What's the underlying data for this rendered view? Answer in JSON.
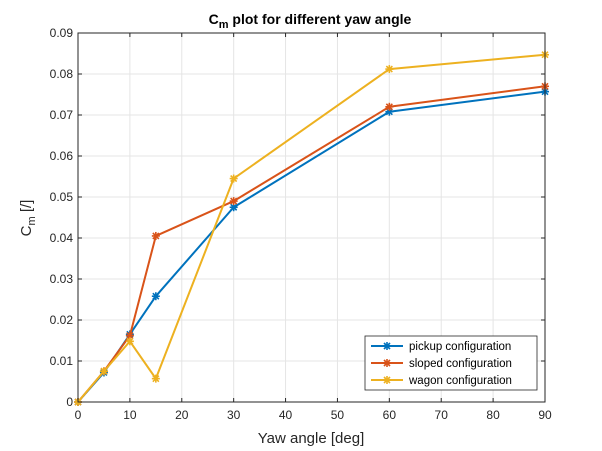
{
  "chart_data": {
    "type": "line",
    "title": {
      "main": "C",
      "sub": "m",
      "rest": " plot for different yaw angle"
    },
    "xlabel": "Yaw angle [deg]",
    "ylabel": {
      "main": "C",
      "sub": "m",
      "rest": " [/]"
    },
    "xlim": [
      0,
      90
    ],
    "ylim": [
      0,
      0.09
    ],
    "xticks": [
      0,
      10,
      20,
      30,
      40,
      50,
      60,
      70,
      80,
      90
    ],
    "yticks": [
      "0",
      "0.01",
      "0.02",
      "0.03",
      "0.04",
      "0.05",
      "0.06",
      "0.07",
      "0.08",
      "0.09"
    ],
    "grid": true,
    "legend_position": "bottom-right",
    "x": [
      0,
      5,
      10,
      15,
      30,
      60,
      90
    ],
    "series": [
      {
        "name": "pickup configuration",
        "color": "#0072BD",
        "marker": "asterisk",
        "values": [
          0,
          0.0072,
          0.0165,
          0.0258,
          0.0475,
          0.0708,
          0.0757
        ]
      },
      {
        "name": "sloped configuration",
        "color": "#D95319",
        "marker": "asterisk",
        "values": [
          0,
          0.0075,
          0.0162,
          0.0405,
          0.049,
          0.072,
          0.077
        ]
      },
      {
        "name": "wagon configuration",
        "color": "#EDB120",
        "marker": "asterisk",
        "values": [
          0,
          0.0075,
          0.0148,
          0.0057,
          0.0545,
          0.0812,
          0.0847
        ]
      }
    ]
  }
}
